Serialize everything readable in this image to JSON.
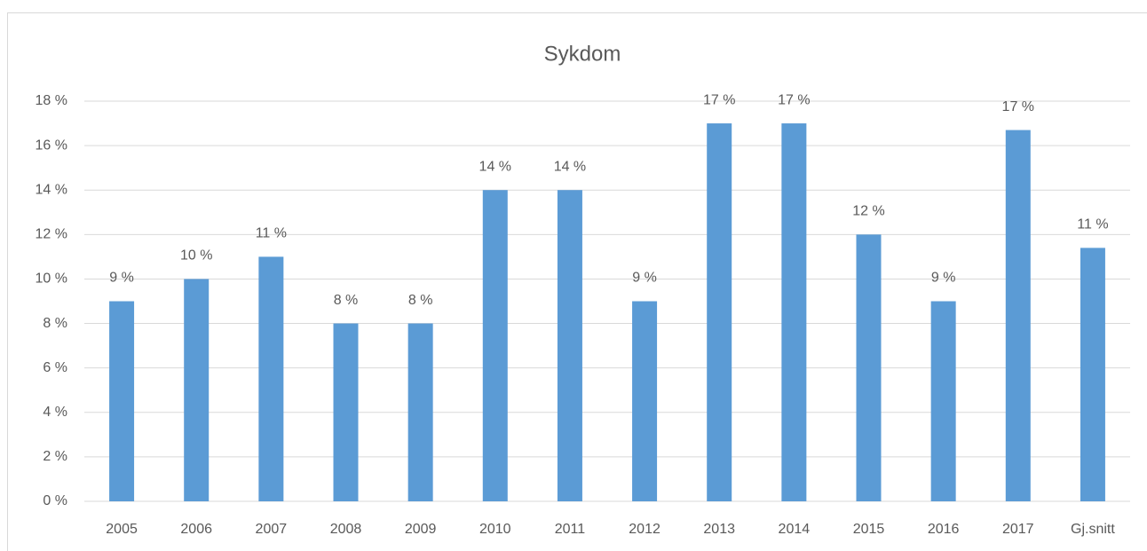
{
  "chart_data": {
    "type": "bar",
    "title": "Sykdom",
    "categories": [
      "2005",
      "2006",
      "2007",
      "2008",
      "2009",
      "2010",
      "2011",
      "2012",
      "2013",
      "2014",
      "2015",
      "2016",
      "2017",
      "Gj.snitt"
    ],
    "values": [
      9,
      10,
      11,
      8,
      8,
      14,
      14,
      9,
      17,
      17,
      12,
      9,
      16.7,
      11.4
    ],
    "value_labels": [
      "9 %",
      "10 %",
      "11 %",
      "8 %",
      "8 %",
      "14 %",
      "14 %",
      "9 %",
      "17 %",
      "17 %",
      "12 %",
      "9 %",
      "17 %",
      "11 %"
    ],
    "color": "#5b9bd5",
    "ylim": [
      0,
      18
    ],
    "yticks": [
      {
        "value": 0,
        "label": "0 %"
      },
      {
        "value": 2,
        "label": "2 %"
      },
      {
        "value": 4,
        "label": "4 %"
      },
      {
        "value": 6,
        "label": "6 %"
      },
      {
        "value": 8,
        "label": "8 %"
      },
      {
        "value": 10,
        "label": "10 %"
      },
      {
        "value": 12,
        "label": "12 %"
      },
      {
        "value": 14,
        "label": "14 %"
      },
      {
        "value": 16,
        "label": "16 %"
      },
      {
        "value": 18,
        "label": "18 %"
      }
    ],
    "grid": true
  }
}
